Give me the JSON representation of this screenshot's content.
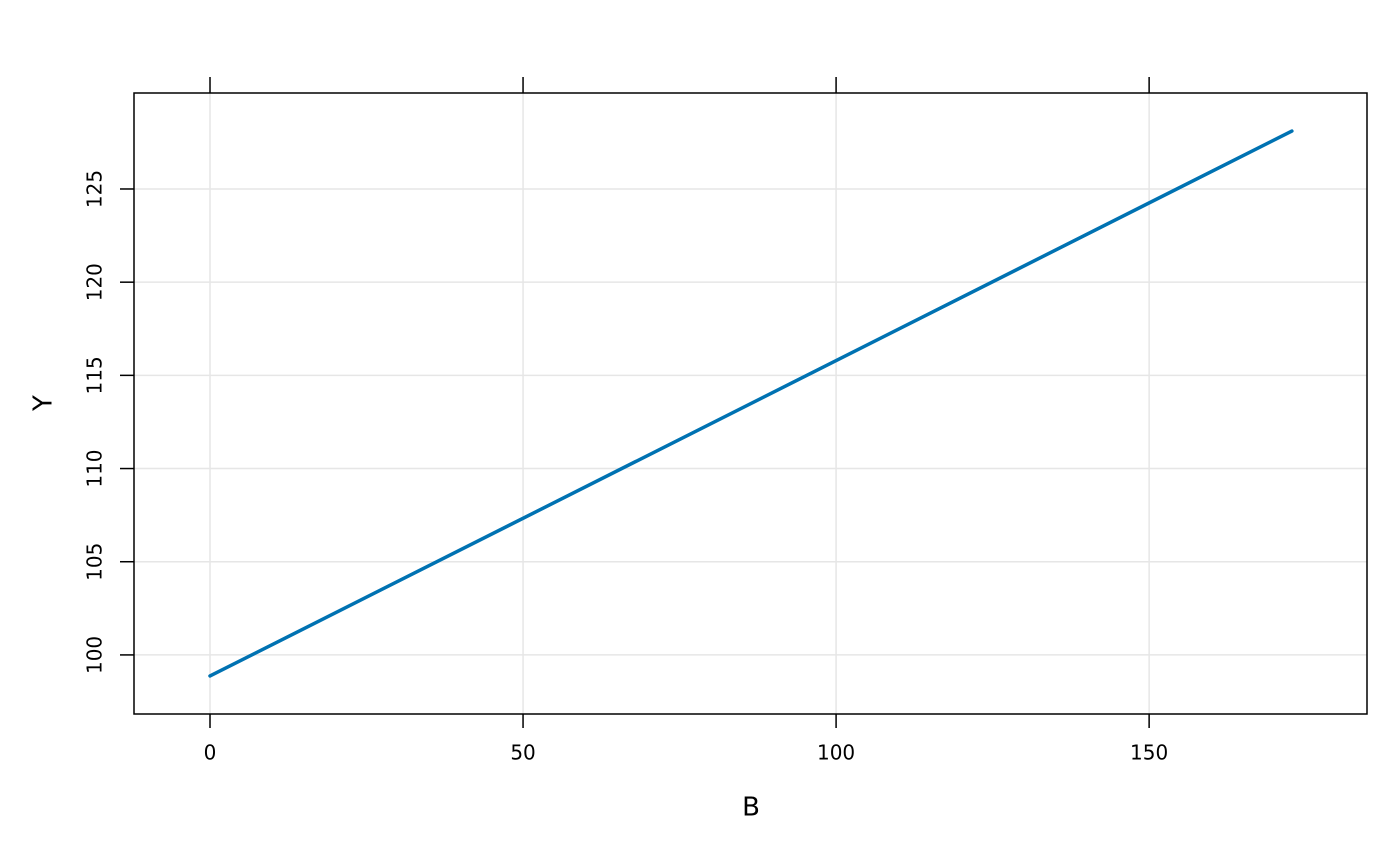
{
  "chart_data": {
    "type": "line",
    "xlabel": "B",
    "ylabel": "Y",
    "x": [
      0,
      172.8
    ],
    "series": [
      {
        "color": "#0072b2",
        "values": [
          98.87,
          128.11
        ]
      }
    ],
    "xlim": [
      -12.14,
      184.8
    ],
    "xticks": [
      0,
      50,
      100,
      150
    ],
    "ylim": [
      96.83,
      130.15
    ],
    "yticks": [
      100,
      105,
      110,
      115,
      120,
      125
    ],
    "grid": true
  }
}
